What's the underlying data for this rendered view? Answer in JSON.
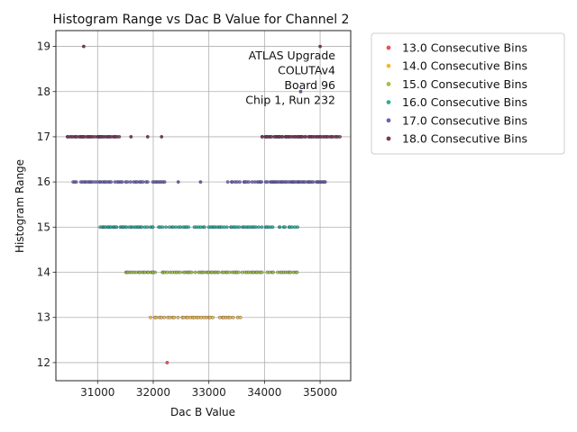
{
  "chart_data": {
    "type": "scatter",
    "title": "Histogram Range vs Dac B Value for Channel 2",
    "xlabel": "Dac B Value",
    "ylabel": "Histogram Range",
    "xlim": [
      30250,
      35550
    ],
    "ylim": [
      11.6,
      19.35
    ],
    "xticks": [
      31000,
      32000,
      33000,
      34000,
      35000
    ],
    "yticks": [
      12,
      13,
      14,
      15,
      16,
      17,
      18,
      19
    ],
    "grid": true,
    "legend_position": "outside-top-right",
    "annotation": [
      "ATLAS Upgrade",
      "COLUTAv4",
      "Board 96",
      "Chip 1, Run 232"
    ],
    "series": [
      {
        "name": "13.0 Consecutive Bins",
        "color": "#e8545c",
        "points": [
          [
            32250,
            12
          ]
        ]
      },
      {
        "name": "14.0 Consecutive Bins",
        "color": "#f5b73b",
        "groups": [
          {
            "y": 13,
            "from": 31950,
            "to": 33550,
            "step": 40
          }
        ]
      },
      {
        "name": "15.0 Consecutive Bins",
        "color": "#a0c13e",
        "groups": [
          {
            "y": 14,
            "from": 31500,
            "to": 34600,
            "step": 30
          }
        ]
      },
      {
        "name": "16.0 Consecutive Bins",
        "color": "#2fae95",
        "groups": [
          {
            "y": 15,
            "from": 31050,
            "to": 32000,
            "step": 25
          },
          {
            "y": 15,
            "from": 32050,
            "to": 32950,
            "step": 35
          },
          {
            "y": 15,
            "from": 33000,
            "to": 34600,
            "step": 30
          }
        ]
      },
      {
        "name": "17.0 Consecutive Bins",
        "color": "#6b62b0",
        "groups": [
          {
            "y": 16,
            "from": 30550,
            "to": 32200,
            "step": 30
          },
          {
            "y": 16,
            "from": 33350,
            "to": 35100,
            "step": 25
          }
        ],
        "points": [
          [
            32450,
            16
          ],
          [
            32850,
            16
          ],
          [
            34650,
            18
          ]
        ]
      },
      {
        "name": "18.0 Consecutive Bins",
        "color": "#7a3a52",
        "groups": [
          {
            "y": 17,
            "from": 30450,
            "to": 31400,
            "step": 20
          },
          {
            "y": 17,
            "from": 33950,
            "to": 35350,
            "step": 20
          }
        ],
        "points": [
          [
            31600,
            17
          ],
          [
            31900,
            17
          ],
          [
            32150,
            17
          ],
          [
            30750,
            19
          ],
          [
            35000,
            19
          ]
        ]
      }
    ]
  }
}
